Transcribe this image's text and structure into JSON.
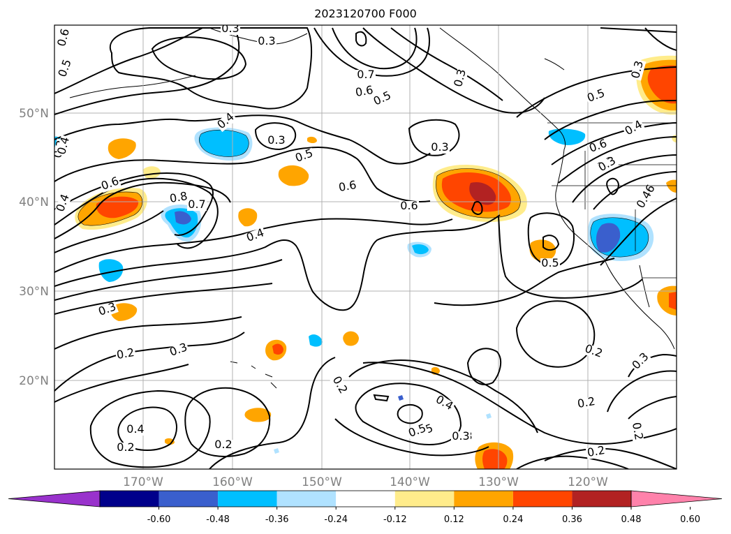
{
  "title": "2023120700 F000",
  "lat_labels": [
    "50°N",
    "40°N",
    "30°N",
    "20°N"
  ],
  "lon_labels": [
    "170°W",
    "160°W",
    "150°W",
    "140°W",
    "130°W",
    "120°W"
  ],
  "colorbar": {
    "ticks": [
      "-0.60",
      "-0.48",
      "-0.36",
      "-0.24",
      "-0.12",
      "0.12",
      "0.24",
      "0.36",
      "0.48",
      "0.60"
    ],
    "colors": [
      "#9932cc",
      "#00008b",
      "#3a5fcd",
      "#00bfff",
      "#b0e2ff",
      "#ffffff",
      "#ffec8b",
      "#ffa500",
      "#ff4500",
      "#b22222",
      "#ff82ab"
    ]
  },
  "contour_labels": [
    "0.6",
    "0.5",
    "0.4",
    "0.3",
    "0.3",
    "0.7",
    "0.6",
    "0.5",
    "0.3",
    "0.3",
    "0.5",
    "0.3",
    "0.4",
    "0.3",
    "0.5",
    "0.3",
    "0.4",
    "0.3",
    "0.5",
    "0.6",
    "0.6",
    "0.4",
    "0.8",
    "0.7",
    "0.6",
    "0.4",
    "0.3",
    "0.6",
    "0.3",
    "0.4",
    "0.46",
    "0.5",
    "0.3",
    "0.2",
    "0.3",
    "0.2",
    "0.4",
    "0.2",
    "0.2",
    "0.4",
    "0.5",
    "0.3",
    "0.2",
    "0.2",
    "0.2",
    "0.3",
    "0.2"
  ]
}
